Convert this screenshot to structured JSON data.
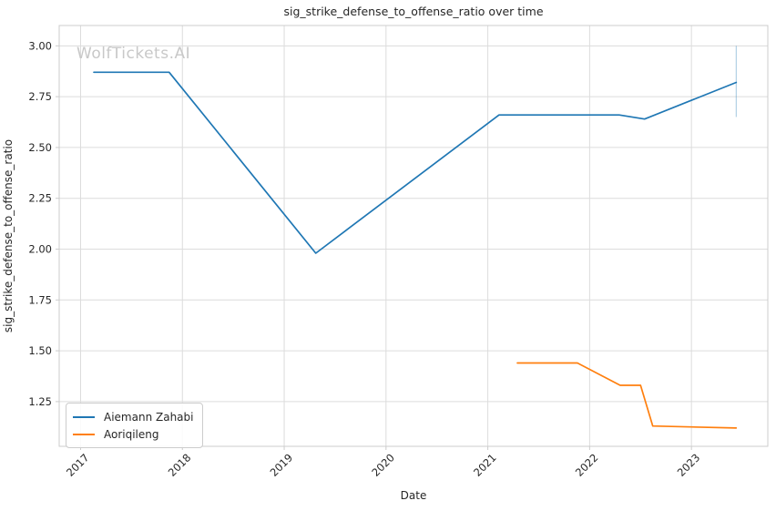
{
  "figure": {
    "title": "sig_strike_defense_to_offense_ratio over time",
    "watermark": "WolfTickets.AI",
    "xlabel": "Date",
    "ylabel": "sig_strike_defense_to_offense_ratio"
  },
  "legend": {
    "items": [
      {
        "label": "Aiemann Zahabi",
        "color": "#1f77b4"
      },
      {
        "label": "Aoriqileng",
        "color": "#ff7f0e"
      }
    ]
  },
  "chart_data": {
    "type": "line",
    "title": "sig_strike_defense_to_offense_ratio over time",
    "xlabel": "Date",
    "ylabel": "sig_strike_defense_to_offense_ratio",
    "xlim": [
      2016.79,
      2023.75
    ],
    "ylim": [
      1.03,
      3.1
    ],
    "x_ticks": [
      2017,
      2018,
      2019,
      2020,
      2021,
      2022,
      2023
    ],
    "x_tick_labels": [
      "2017",
      "2018",
      "2019",
      "2020",
      "2021",
      "2022",
      "2023"
    ],
    "y_ticks": [
      1.25,
      1.5,
      1.75,
      2.0,
      2.25,
      2.5,
      2.75,
      3.0
    ],
    "y_tick_labels": [
      "1.25",
      "1.50",
      "1.75",
      "2.00",
      "2.25",
      "2.50",
      "2.75",
      "3.00"
    ],
    "grid": true,
    "legend_position": "lower left",
    "series": [
      {
        "name": "Aiemann Zahabi",
        "color": "#1f77b4",
        "x": [
          2017.13,
          2017.87,
          2019.31,
          2021.11,
          2022.29,
          2022.54,
          2023.44
        ],
        "y": [
          2.87,
          2.87,
          1.98,
          2.66,
          2.66,
          2.64,
          2.82
        ],
        "error_bar": {
          "x": 2023.44,
          "y_low": 2.65,
          "y_high": 3.0
        }
      },
      {
        "name": "Aoriqileng",
        "color": "#ff7f0e",
        "x": [
          2021.29,
          2021.88,
          2022.3,
          2022.5,
          2022.62,
          2023.44
        ],
        "y": [
          1.44,
          1.44,
          1.33,
          1.33,
          1.13,
          1.12
        ]
      }
    ],
    "style_colors": {
      "grid": "#dcdcdc",
      "spine": "#cccccc",
      "tick": "#cccccc",
      "text": "#262626",
      "watermark": "#c8c8c8",
      "error_bar": "rgba(31,119,180,0.35)"
    }
  }
}
